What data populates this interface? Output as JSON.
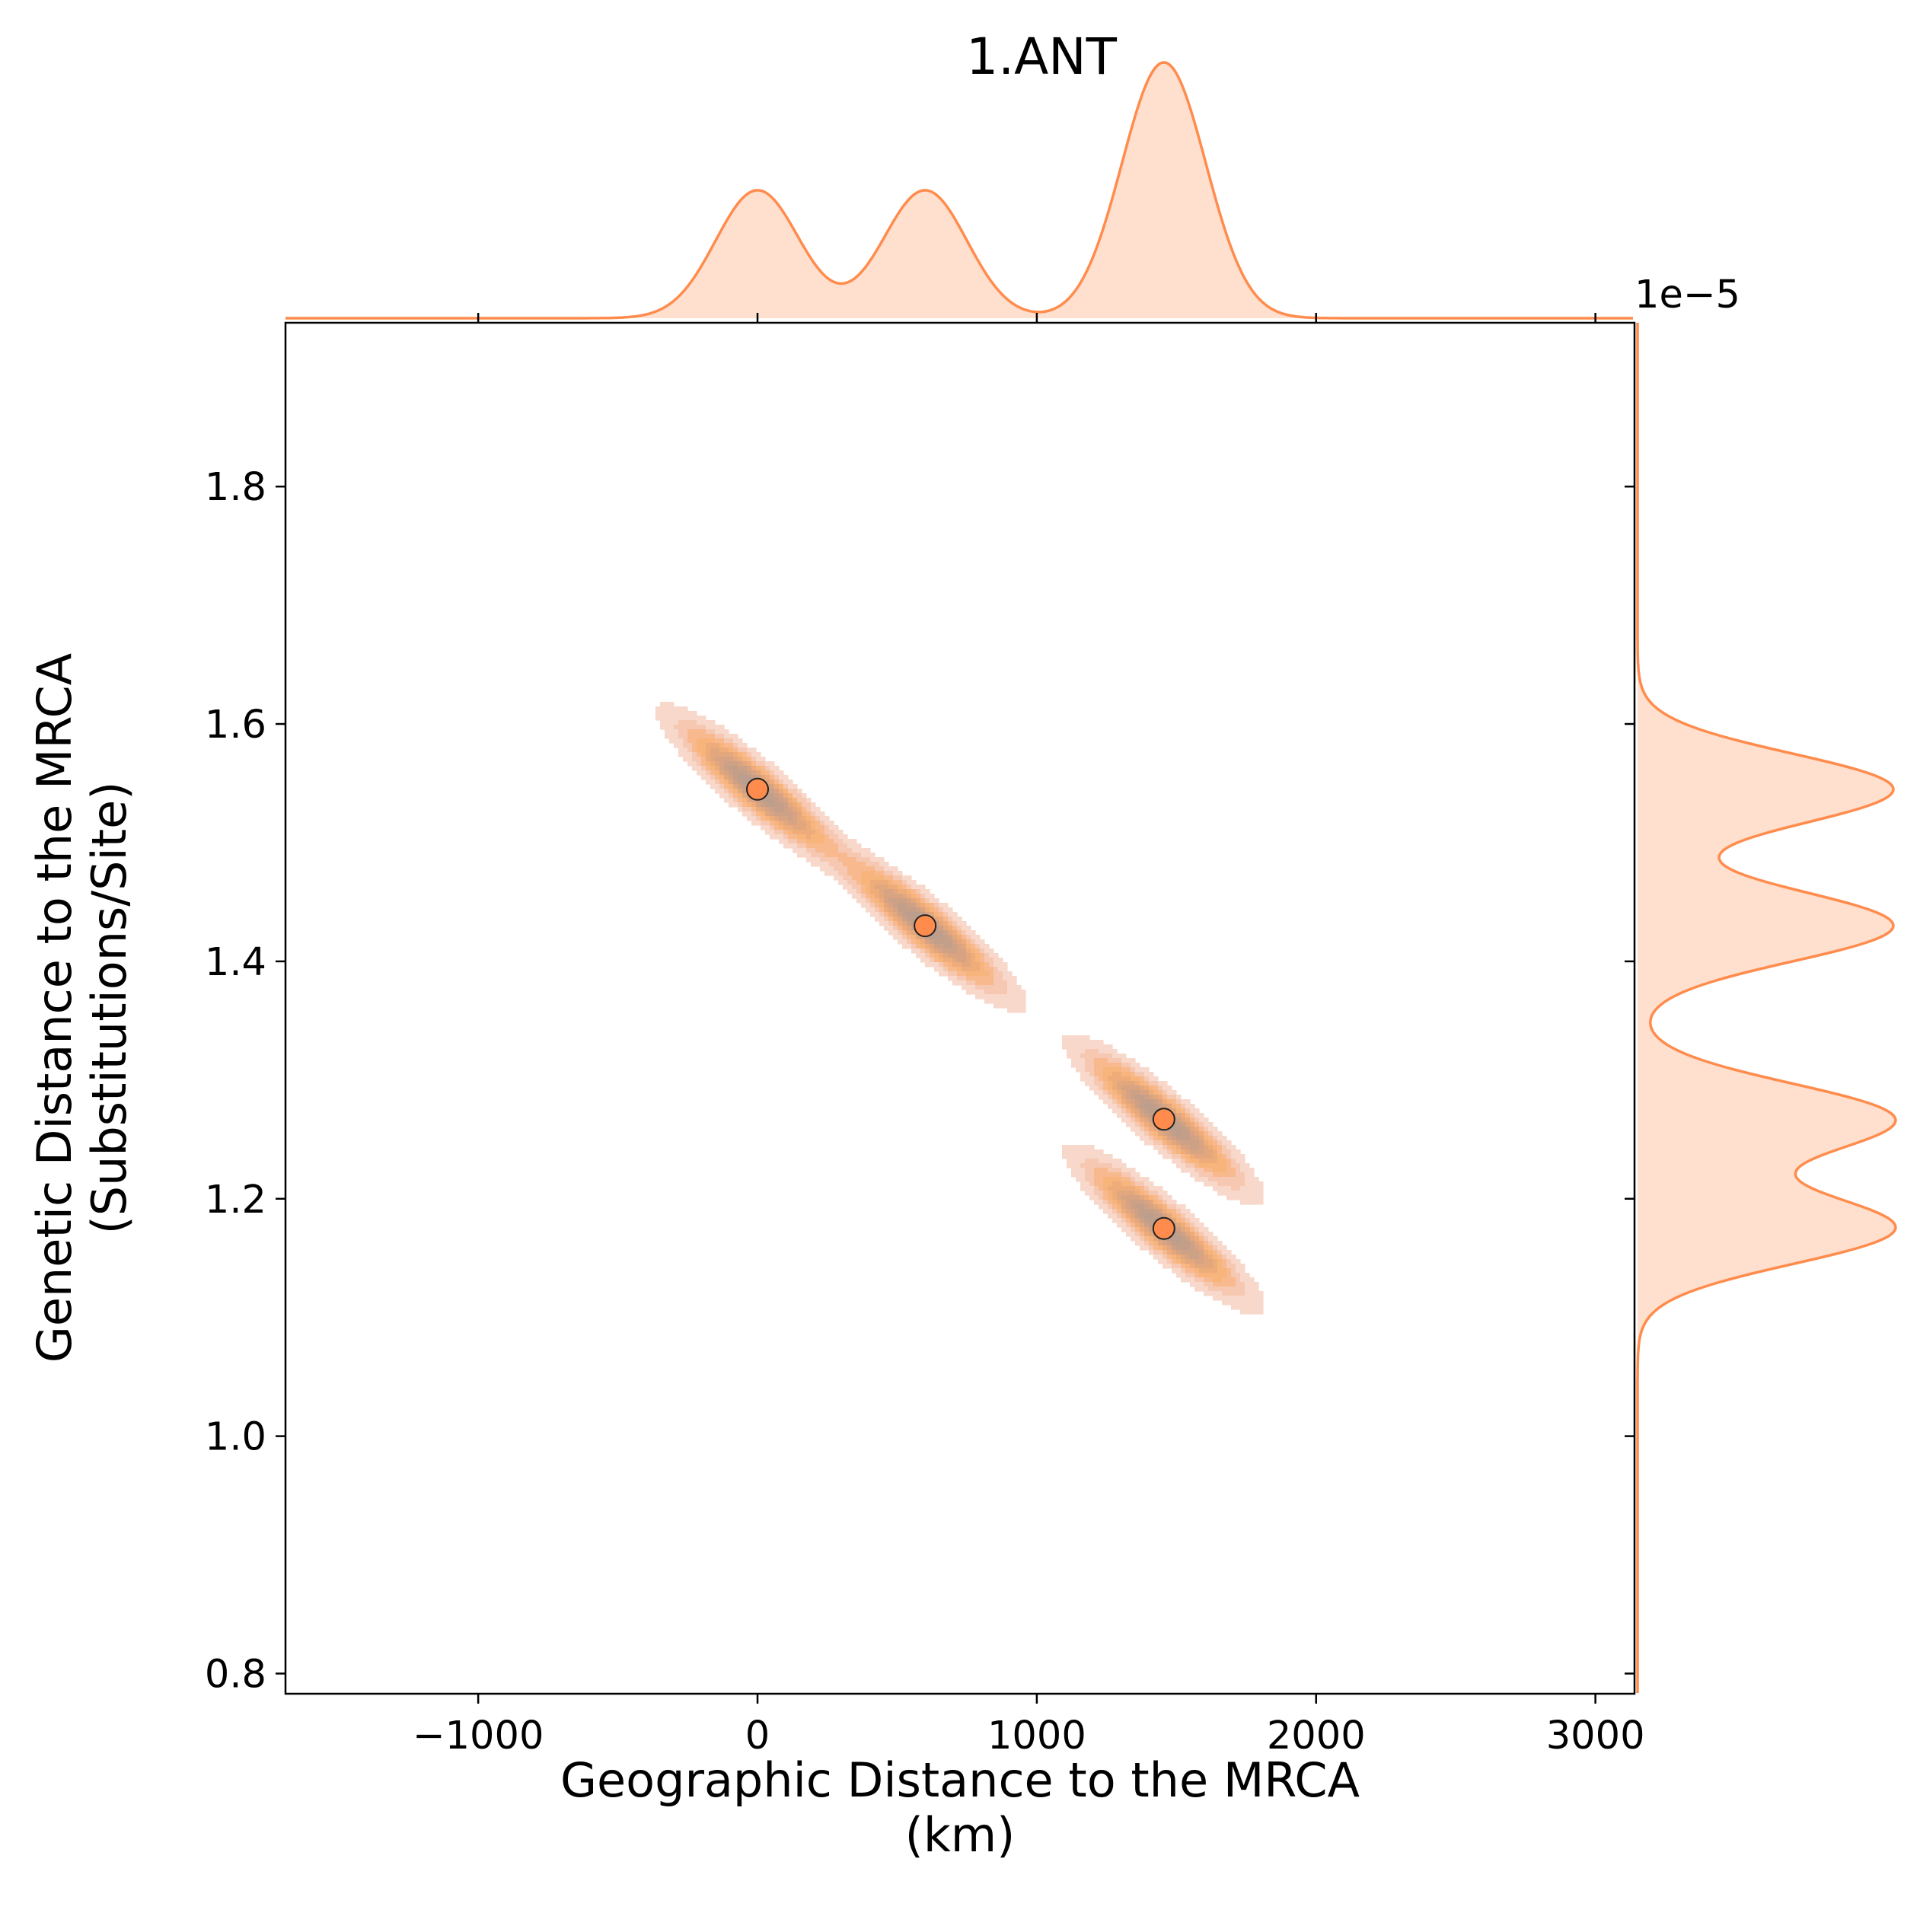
{
  "chart_data": {
    "type": "scatter",
    "title": "1.ANT",
    "xlabel": [
      "Geographic Distance to the MRCA",
      "(km)"
    ],
    "ylabel": [
      "Genetic Distance to the MRCA",
      "(Substitutions/Site)"
    ],
    "y_offset_text": "1e−5",
    "xlim": [
      -1690,
      3140
    ],
    "ylim": [
      0.783,
      1.938
    ],
    "y_scale_factor": 1e-05,
    "xticks": [
      -1000,
      0,
      1000,
      2000,
      3000
    ],
    "xtick_labels": [
      "−1000",
      "0",
      "1000",
      "2000",
      "3000"
    ],
    "yticks": [
      0.8,
      1.0,
      1.2,
      1.4,
      1.6,
      1.8
    ],
    "ytick_labels": [
      "0.8",
      "1.0",
      "1.2",
      "1.4",
      "1.6",
      "1.8"
    ],
    "grid": false,
    "legend": null,
    "series_color": "#ff8c4d",
    "points": [
      {
        "x": 0,
        "y": 1.545
      },
      {
        "x": 600,
        "y": 1.43
      },
      {
        "x": 1455,
        "y": 1.267
      },
      {
        "x": 1455,
        "y": 1.175
      }
    ],
    "kde_bandwidth_x": 150,
    "kde_bandwidth_y": 0.03,
    "kde": {
      "type": "kde-contour",
      "levels": 10,
      "marginals": [
        "top: x density",
        "right: y density"
      ]
    }
  }
}
